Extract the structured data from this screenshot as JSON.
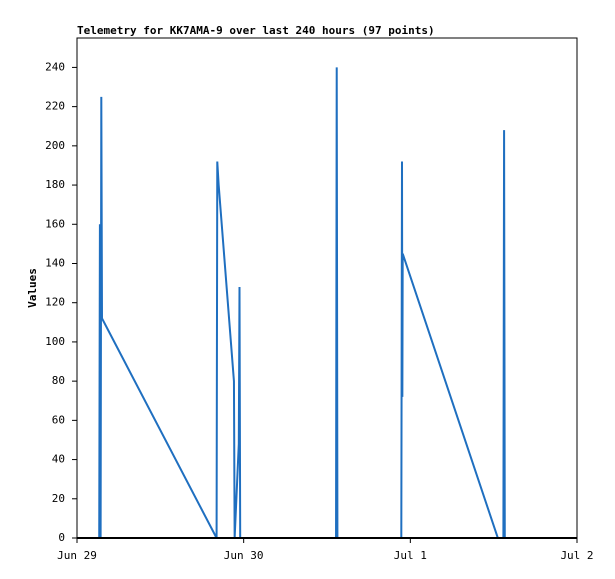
{
  "chart_data": {
    "type": "line",
    "title": "Telemetry for KK7AMA-9 over last 240 hours (97 points)",
    "y_label": "Values",
    "x": [
      3.2,
      3.3,
      3.4,
      3.5,
      3.6,
      20.1,
      20.2,
      20.4,
      22.6,
      22.7,
      23.3,
      23.4,
      23.5,
      37.3,
      37.4,
      37.5,
      46.7,
      46.8,
      46.85,
      46.9,
      60.6,
      61.4,
      61.5,
      61.6
    ],
    "series": [
      {
        "name": "Values",
        "color": "#1f6fc0",
        "values": [
          0,
          160,
          0,
          225,
          112,
          0,
          192,
          180,
          80,
          0,
          48,
          128,
          0,
          0,
          240,
          0,
          0,
          192,
          72,
          145,
          0,
          0,
          208,
          0
        ]
      }
    ],
    "xlim": [
      0,
      72
    ],
    "xticks": [
      {
        "value": 0,
        "label": "Jun 29"
      },
      {
        "value": 24,
        "label": "Jun 30"
      },
      {
        "value": 48,
        "label": "Jul 1"
      },
      {
        "value": 72,
        "label": "Jul 2"
      }
    ],
    "ylim": [
      0,
      255
    ],
    "yticks": [
      0,
      20,
      40,
      60,
      80,
      100,
      120,
      140,
      160,
      180,
      200,
      220,
      240
    ]
  }
}
